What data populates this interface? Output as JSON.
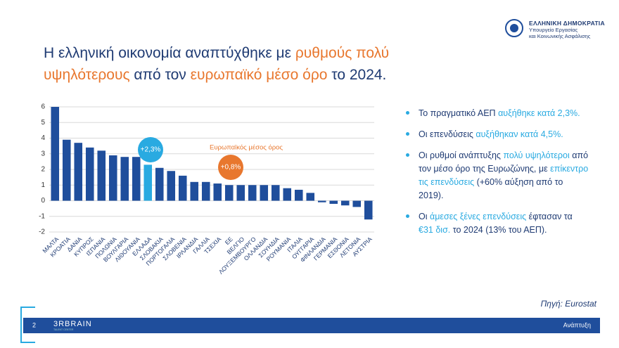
{
  "header": {
    "org": "ΕΛΛΗΝΙΚΗ ΔΗΜΟΚΡΑΤΙΑ",
    "ministry": [
      "Υπουργείο Εργασίας",
      "και Κοινωνικής Ασφάλισης"
    ]
  },
  "title": [
    [
      {
        "text": "Η ελληνική οικονομία αναπτύχθηκε με ",
        "color": "#1f3b73"
      },
      {
        "text": "ρυθμούς πολύ",
        "color": "#e8772e"
      }
    ],
    [
      {
        "text": "υψηλότερους",
        "color": "#e8772e"
      },
      {
        "text": " από τον ",
        "color": "#1f3b73"
      },
      {
        "text": "ευρωπαϊκό μέσο όρο",
        "color": "#e8772e"
      },
      {
        "text": " το 2024.",
        "color": "#1f3b73"
      }
    ]
  ],
  "bullets": [
    [
      {
        "text": "Το πραγματικό ΑΕΠ ",
        "color": "#1f3b73"
      },
      {
        "text": "αυξήθηκε κατά 2,3%.",
        "color": "#29aae1"
      }
    ],
    [
      {
        "text": "Οι επενδύσεις ",
        "color": "#1f3b73"
      },
      {
        "text": "αυξήθηκαν κατά 4,5%.",
        "color": "#29aae1"
      }
    ],
    [
      {
        "text": "Οι ρυθμοί ανάπτυξης ",
        "color": "#1f3b73"
      },
      {
        "text": "πολύ υψηλότεροι",
        "color": "#29aae1"
      },
      {
        "text": " από τον μέσο όρο της Ευρωζώνης, με ",
        "color": "#1f3b73"
      },
      {
        "text": "επίκεντρο τις επενδύσεις",
        "color": "#29aae1"
      },
      {
        "text": " (+60% αύξηση από το 2019).",
        "color": "#1f3b73"
      }
    ],
    [
      {
        "text": "Οι ",
        "color": "#1f3b73"
      },
      {
        "text": "άμεσες ξένες επενδύσεις",
        "color": "#29aae1"
      },
      {
        "text": " έφτασαν τα ",
        "color": "#1f3b73"
      },
      {
        "text": "€31 δισ.",
        "color": "#29aae1"
      },
      {
        "text": " το 2024 (13% του ΑΕΠ).",
        "color": "#1f3b73"
      }
    ]
  ],
  "source": "Πηγή: Eurostat",
  "footer": {
    "page": "2",
    "brand": "3RBRAIN",
    "brand_sub": "TALENT CENTER",
    "section": "Ανάπτυξη"
  },
  "chart_data": {
    "type": "bar",
    "categories": [
      "ΜΑΛΤΑ",
      "ΚΡΟΑΤΙΑ",
      "ΔΑΝΙΑ",
      "ΚΥΠΡΟΣ",
      "ΙΣΠΑΝΙΑ",
      "ΠΟΛΩΝΙΑ",
      "ΒΟΥΛΓΑΡΙΑ",
      "ΛΙΘΟΥΑΝΙΑ",
      "ΕΛΛΑΔΑ",
      "ΣΛΟΒΑΚΙΑ",
      "ΠΟΡΤΟΓΑΛΙΑ",
      "ΣΛΟΒΕΝΙΑ",
      "ΙΡΛΑΝΔΙΑ",
      "ΓΑΛΛΙΑ",
      "ΤΣΕΧΙΑ",
      "ΕΕ",
      "ΒΕΛΓΙΟ",
      "ΛΟΥΞΕΜΒΟΥΡΓΟ",
      "ΟΛΛΑΝΔΙΑ",
      "ΣΟΥΗΔΙΑ",
      "ΡΟΥΜΑΝΙΑ",
      "ΙΤΑΛΙΑ",
      "ΟΥΓΓΑΡΙΑ",
      "ΦΙΝΛΑΝΔΙΑ",
      "ΓΕΡΜΑΝΙΑ",
      "ΕΣΘΟΝΙΑ",
      "ΛΕΤΟΝΙΑ",
      "ΑΥΣΤΡΙΑ"
    ],
    "values": [
      6.0,
      3.9,
      3.7,
      3.4,
      3.2,
      2.9,
      2.8,
      2.8,
      2.3,
      2.1,
      1.9,
      1.6,
      1.2,
      1.2,
      1.1,
      1.0,
      1.0,
      1.0,
      1.0,
      1.0,
      0.8,
      0.7,
      0.5,
      -0.1,
      -0.2,
      -0.3,
      -0.4,
      -1.2
    ],
    "colors": [
      "#1f4e9c",
      "#1f4e9c",
      "#1f4e9c",
      "#1f4e9c",
      "#1f4e9c",
      "#1f4e9c",
      "#1f4e9c",
      "#1f4e9c",
      "#29aae1",
      "#1f4e9c",
      "#1f4e9c",
      "#1f4e9c",
      "#1f4e9c",
      "#1f4e9c",
      "#1f4e9c",
      "#1f4e9c",
      "#1f4e9c",
      "#1f4e9c",
      "#1f4e9c",
      "#1f4e9c",
      "#1f4e9c",
      "#1f4e9c",
      "#1f4e9c",
      "#1f4e9c",
      "#1f4e9c",
      "#1f4e9c",
      "#1f4e9c",
      "#1f4e9c"
    ],
    "ylim": [
      -2,
      6
    ],
    "yticks": [
      -2,
      -1,
      0,
      1,
      2,
      3,
      4,
      5,
      6
    ],
    "grid": true,
    "annotations": [
      {
        "text": "+2,3%",
        "color": "#29aae1"
      },
      {
        "text": "+0,8%",
        "color": "#e8772e"
      },
      {
        "text": "Ευρωπαϊκός μέσος όρος",
        "color": "#e8772e"
      }
    ]
  }
}
